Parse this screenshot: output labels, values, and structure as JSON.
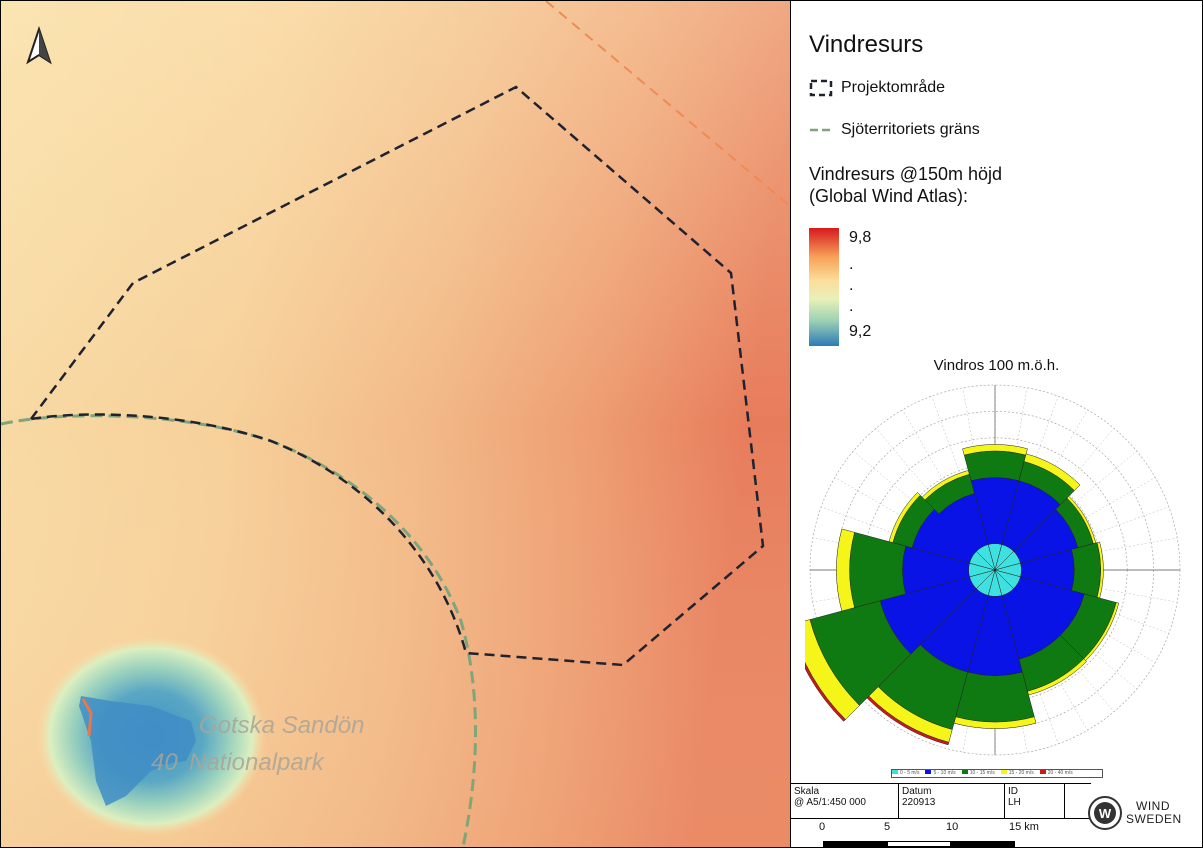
{
  "map": {
    "labels": {
      "island_name": "Gotska Sandön",
      "park_name": "Nationalpark",
      "height_value": "40"
    },
    "north_arrow_icon": "north-arrow-icon"
  },
  "legend": {
    "title": "Vindresurs",
    "project_area": "Projektområde",
    "sea_territory": "Sjöterritoriets gräns",
    "subtitle_line1": "Vindresurs @150m höjd",
    "subtitle_line2": "(Global Wind Atlas):",
    "ramp_max": "9,8",
    "ramp_dot1": ".",
    "ramp_dot2": ".",
    "ramp_dot3": ".",
    "ramp_min": "9,2",
    "ramp_colors": [
      "#d7191c",
      "#fdae61",
      "#ffffbf",
      "#abdda4",
      "#2b83ba"
    ]
  },
  "windrose": {
    "title": "Vindros 100 m.ö.h.",
    "speed_bins": [
      "0 - 5 m/s",
      "5 - 10 m/s",
      "10 - 15 m/s",
      "15 - 20 m/s",
      "20 - 40 m/s"
    ],
    "bin_colors": [
      "#3fe0e0",
      "#0a13e6",
      "#0f7a12",
      "#f5f51a",
      "#cc1a1a"
    ],
    "directions_deg": [
      0,
      30,
      60,
      90,
      120,
      150,
      180,
      210,
      240,
      270,
      300,
      330
    ],
    "frequency_by_bin": [
      [
        2.0,
        2.0,
        2.0,
        2.0,
        2.0,
        2.0,
        2.0,
        2.0,
        2.0,
        2.0,
        2.0,
        2.0
      ],
      [
        5.0,
        5.0,
        4.5,
        4.0,
        5.0,
        5.0,
        6.0,
        6.0,
        7.0,
        5.0,
        4.5,
        4.0
      ],
      [
        2.0,
        1.5,
        1.2,
        2.0,
        2.5,
        2.5,
        3.5,
        4.5,
        5.5,
        4.0,
        1.5,
        1.5
      ],
      [
        0.5,
        0.6,
        0.2,
        0.2,
        0.2,
        0.3,
        0.5,
        1.0,
        1.5,
        1.0,
        0.3,
        0.3
      ],
      [
        0.0,
        0.0,
        0.0,
        0.0,
        0.0,
        0.0,
        0.0,
        0.2,
        0.2,
        0.0,
        0.0,
        0.0
      ]
    ],
    "ring_max": 14
  },
  "info": {
    "scale_label": "Skala",
    "scale_value": "@ A5/1:450 000",
    "date_label": "Datum",
    "date_value": "220913",
    "id_label": "ID",
    "id_value": "LH"
  },
  "scalebar": {
    "t0": "0",
    "t1": "5",
    "t2": "10",
    "t3": "15 km"
  },
  "logo": {
    "line1": "WIND",
    "line2": "SWEDEN"
  }
}
